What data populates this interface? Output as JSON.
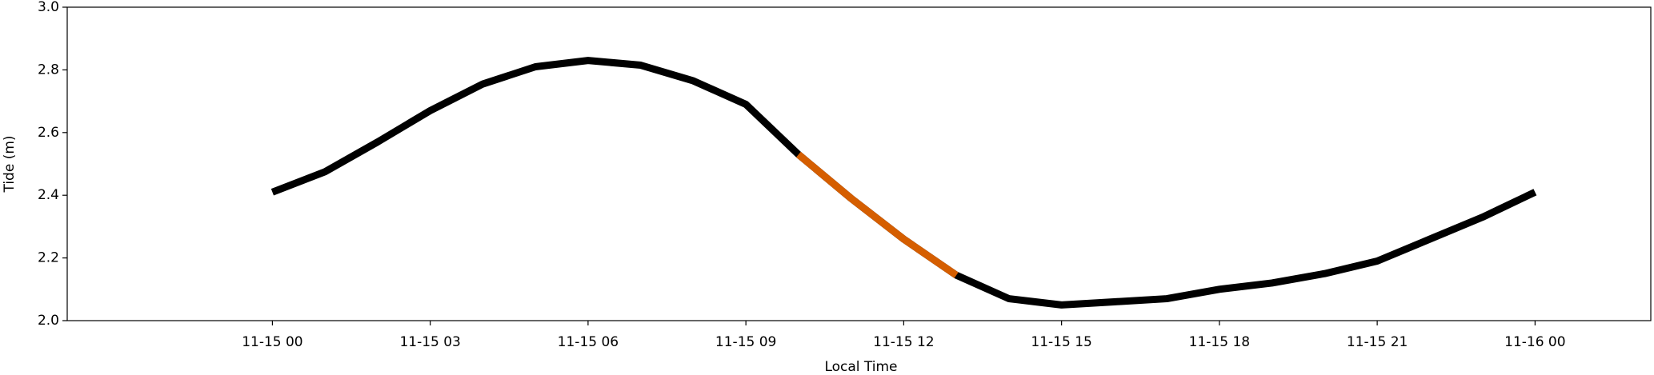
{
  "chart_data": {
    "type": "line",
    "x": [
      0,
      1,
      2,
      3,
      4,
      5,
      6,
      7,
      8,
      9,
      10,
      11,
      12,
      13,
      14,
      15,
      16,
      17,
      18,
      19,
      20,
      21,
      22,
      23,
      24
    ],
    "series": [
      {
        "color": "#000000",
        "values": [
          2.41,
          2.475,
          2.57,
          2.67,
          2.755,
          2.81,
          2.83,
          2.815,
          2.765,
          2.69,
          2.53,
          2.39,
          2.26,
          2.145,
          2.07,
          2.05,
          2.06,
          2.07,
          2.1,
          2.12,
          2.15,
          2.19,
          2.26,
          2.33,
          2.41
        ]
      },
      {
        "color": "#d55e00",
        "values": [
          null,
          null,
          null,
          null,
          null,
          null,
          null,
          null,
          null,
          null,
          2.53,
          2.39,
          2.26,
          2.145,
          null,
          null,
          null,
          null,
          null,
          null,
          null,
          null,
          null,
          null,
          null
        ]
      }
    ],
    "xlabel": "Local Time",
    "ylabel": "Tide (m)",
    "xlim": [
      -3.9,
      26.2
    ],
    "xticks": [
      {
        "value": 0,
        "label": "11-15 00"
      },
      {
        "value": 3,
        "label": "11-15 03"
      },
      {
        "value": 6,
        "label": "11-15 06"
      },
      {
        "value": 9,
        "label": "11-15 09"
      },
      {
        "value": 12,
        "label": "11-15 12"
      },
      {
        "value": 15,
        "label": "11-15 15"
      },
      {
        "value": 18,
        "label": "11-15 18"
      },
      {
        "value": 21,
        "label": "11-15 21"
      },
      {
        "value": 24,
        "label": "11-16 00"
      }
    ],
    "ylim": [
      2.0,
      3.0
    ],
    "yticks": [
      {
        "value": 2.0,
        "label": "2.0"
      },
      2.2,
      2.4,
      2.6,
      2.8,
      {
        "value": 3.0,
        "label": "3.0"
      }
    ]
  }
}
